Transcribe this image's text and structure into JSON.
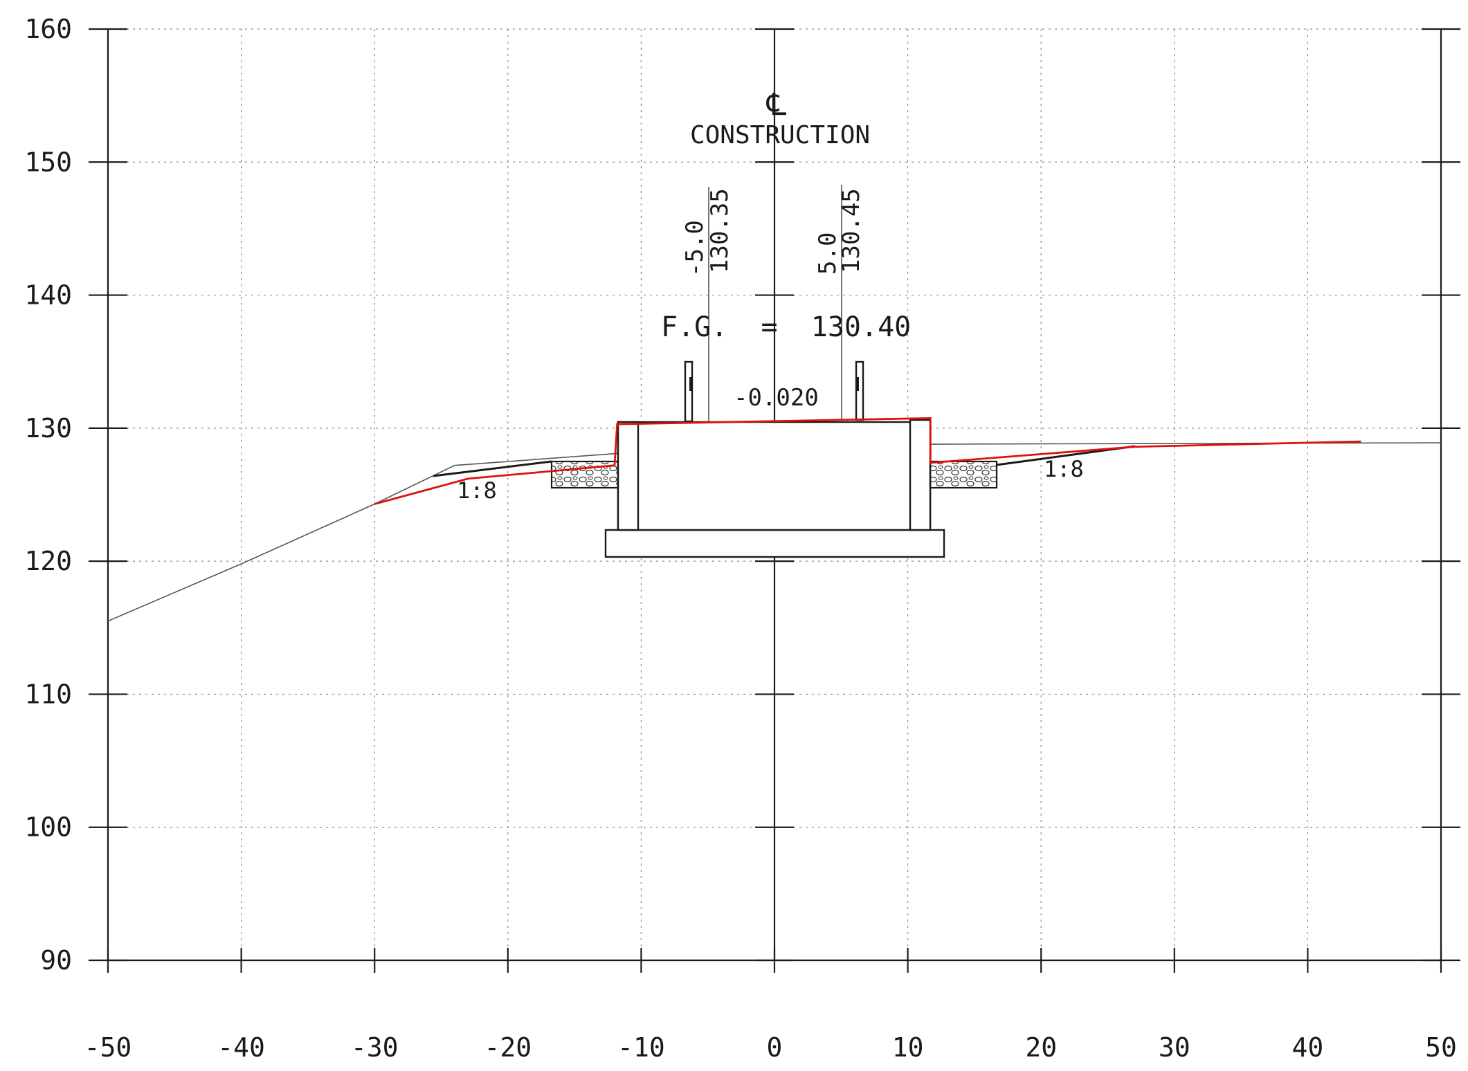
{
  "title": {
    "centerline_symbol": "℄",
    "label": "CONSTRUCTION"
  },
  "annotations": {
    "fg_label": "F.G.  =  130.40",
    "cross_slope": "-0.020",
    "left_offset": "-5.0",
    "left_elev": "130.35",
    "right_offset": "5.0",
    "right_elev": "130.45",
    "left_slope": "1:8",
    "right_slope": "1:8"
  },
  "axes": {
    "x_ticks": [
      "-50",
      "-40",
      "-30",
      "-20",
      "-10",
      "0",
      "10",
      "20",
      "30",
      "40",
      "50"
    ],
    "y_ticks": [
      "160",
      "150",
      "140",
      "130",
      "120",
      "110",
      "100",
      "90"
    ],
    "x_range": [
      -50,
      50
    ],
    "y_range": [
      90,
      160
    ],
    "grid": "dotted"
  },
  "chart_data": {
    "type": "line",
    "series": [
      {
        "points": [
          [
            -50,
            115.5
          ],
          [
            -40,
            119.8
          ],
          [
            -30,
            124.3
          ],
          [
            -24,
            127.2
          ],
          [
            -5,
            128.6
          ],
          [
            0,
            128.7
          ],
          [
            13,
            128.8
          ],
          [
            50,
            128.9
          ]
        ]
      },
      {
        "points": [
          [
            -30,
            124.3
          ],
          [
            -23,
            126.2
          ],
          [
            -12,
            127.2
          ],
          [
            -11.8,
            130.3
          ],
          [
            11.7,
            130.75
          ],
          [
            11.7,
            127.4
          ],
          [
            27,
            128.6
          ],
          [
            44,
            129.0
          ]
        ]
      }
    ],
    "xlim": [
      -50,
      50
    ],
    "ylim": [
      90,
      160
    ]
  },
  "colors": {
    "design_line": "#e01010",
    "ground_line": "#555555",
    "ink": "#1a1a1a"
  }
}
